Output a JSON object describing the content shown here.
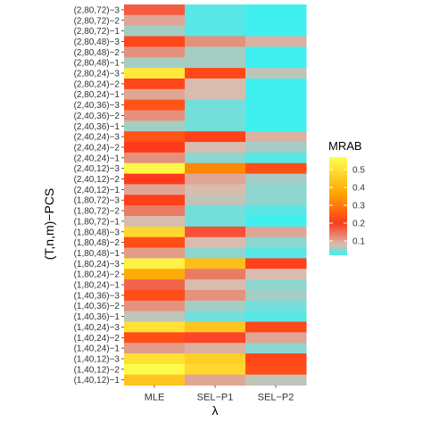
{
  "chart_data": {
    "type": "heatmap",
    "title": "",
    "xlabel": "λ",
    "ylabel": "(T,n,m)−PCS",
    "x_categories": [
      "MLE",
      "SEL−P1",
      "SEL−P2"
    ],
    "y_categories": [
      "(2,80,72)−3",
      "(2,80,72)−2",
      "(2,80,72)−1",
      "(2,80,48)−3",
      "(2,80,48)−2",
      "(2,80,48)−1",
      "(2,80,24)−3",
      "(2,80,24)−2",
      "(2,80,24)−1",
      "(2,40,36)−3",
      "(2,40,36)−2",
      "(2,40,36)−1",
      "(2,40,24)−3",
      "(2,40,24)−2",
      "(2,40,24)−1",
      "(2,40,12)−3",
      "(2,40,12)−2",
      "(2,40,12)−1",
      "(1,80,72)−3",
      "(1,80,72)−2",
      "(1,80,72)−1",
      "(1,80,48)−3",
      "(1,80,48)−2",
      "(1,80,48)−1",
      "(1,80,24)−3",
      "(1,80,24)−2",
      "(1,80,24)−1",
      "(1,40,36)−3",
      "(1,40,36)−2",
      "(1,40,36)−1",
      "(1,40,24)−3",
      "(1,40,24)−2",
      "(1,40,24)−1",
      "(1,40,12)−3",
      "(1,40,12)−2",
      "(1,40,12)−1"
    ],
    "values": [
      [
        0.17,
        0.03,
        0.02
      ],
      [
        0.1,
        0.03,
        0.02
      ],
      [
        0.06,
        0.03,
        0.02
      ],
      [
        0.22,
        0.12,
        0.09
      ],
      [
        0.12,
        0.06,
        0.02
      ],
      [
        0.06,
        0.06,
        0.02
      ],
      [
        0.52,
        0.22,
        0.07
      ],
      [
        0.22,
        0.08,
        0.02
      ],
      [
        0.1,
        0.08,
        0.02
      ],
      [
        0.24,
        0.04,
        0.02
      ],
      [
        0.12,
        0.04,
        0.02
      ],
      [
        0.06,
        0.04,
        0.02
      ],
      [
        0.24,
        0.21,
        0.09
      ],
      [
        0.2,
        0.08,
        0.06
      ],
      [
        0.12,
        0.05,
        0.03
      ],
      [
        0.55,
        0.32,
        0.23
      ],
      [
        0.2,
        0.1,
        0.06
      ],
      [
        0.1,
        0.08,
        0.05
      ],
      [
        0.21,
        0.07,
        0.05
      ],
      [
        0.14,
        0.04,
        0.03
      ],
      [
        0.08,
        0.04,
        0.02
      ],
      [
        0.48,
        0.18,
        0.1
      ],
      [
        0.23,
        0.08,
        0.05
      ],
      [
        0.11,
        0.05,
        0.03
      ],
      [
        0.54,
        0.42,
        0.21
      ],
      [
        0.38,
        0.14,
        0.08
      ],
      [
        0.16,
        0.08,
        0.05
      ],
      [
        0.23,
        0.12,
        0.06
      ],
      [
        0.12,
        0.06,
        0.04
      ],
      [
        0.07,
        0.04,
        0.03
      ],
      [
        0.5,
        0.44,
        0.22
      ],
      [
        0.23,
        0.19,
        0.1
      ],
      [
        0.11,
        0.09,
        0.05
      ],
      [
        0.5,
        0.46,
        0.22
      ],
      [
        0.56,
        0.48,
        0.23
      ],
      [
        0.44,
        0.1,
        0.07
      ]
    ],
    "colorbar": {
      "title": "MRAB",
      "min": 0.02,
      "max": 0.57,
      "ticks": [
        0.1,
        0.2,
        0.3,
        0.4,
        0.5
      ],
      "tick_labels": [
        "0.1",
        "0.2",
        "0.3",
        "0.4",
        "0.5"
      ],
      "placement": "right"
    },
    "color_scale": [
      {
        "v": 0.02,
        "color": "#40f0f0"
      },
      {
        "v": 0.08,
        "color": "#d8bcae"
      },
      {
        "v": 0.2,
        "color": "#ff3a1c"
      },
      {
        "v": 0.36,
        "color": "#ffa200"
      },
      {
        "v": 0.57,
        "color": "#ffff50"
      }
    ],
    "grid": false
  }
}
